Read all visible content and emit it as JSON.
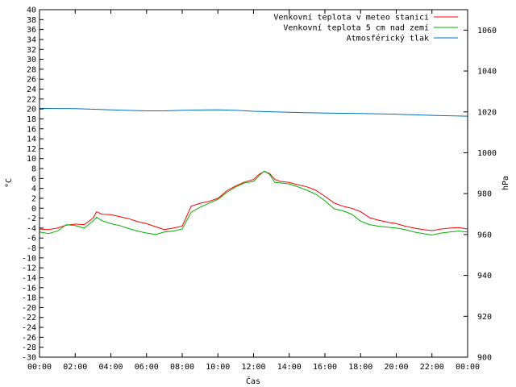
{
  "chart_data": {
    "type": "line",
    "title": "",
    "xlabel": "Čas",
    "ylabel_left": "°C",
    "ylabel_right": "hPa",
    "x_ticks": [
      "00:00",
      "02:00",
      "04:00",
      "06:00",
      "08:00",
      "10:00",
      "12:00",
      "14:00",
      "16:00",
      "18:00",
      "20:00",
      "22:00",
      "00:00"
    ],
    "x_range_hours": [
      0,
      24
    ],
    "y_left_range": [
      -30,
      40
    ],
    "y_left_ticks": [
      "-30",
      "-28",
      "-26",
      "-24",
      "-22",
      "-20",
      "-18",
      "-16",
      "-14",
      "-12",
      "-10",
      "-8",
      "-6",
      "-4",
      "-2",
      "0",
      "2",
      "4",
      "6",
      "8",
      "10",
      "12",
      "14",
      "16",
      "18",
      "20",
      "22",
      "24",
      "26",
      "28",
      "30",
      "32",
      "34",
      "36",
      "38",
      "40"
    ],
    "y_right_range": [
      900,
      1070
    ],
    "y_right_ticks": [
      "900",
      "920",
      "940",
      "960",
      "980",
      "1000",
      "1020",
      "1040",
      "1060"
    ],
    "grid": false,
    "legend_position": "top-right",
    "series": [
      {
        "name": "Venkovní teplota v meteo stanici",
        "color": "#ff0000",
        "axis": "left",
        "x": [
          0,
          0.5,
          1,
          1.5,
          2,
          2.5,
          3,
          3.2,
          3.5,
          4,
          4.5,
          5,
          5.5,
          6,
          6.5,
          7,
          7.5,
          8,
          8.5,
          9,
          9.5,
          10,
          10.5,
          11,
          11.5,
          12,
          12.3,
          12.6,
          12.9,
          13.2,
          13.5,
          14,
          14.5,
          15,
          15.5,
          16,
          16.5,
          17,
          17.5,
          18,
          18.5,
          19,
          19.5,
          20,
          20.5,
          21,
          21.5,
          22,
          22.5,
          23,
          23.5,
          24
        ],
        "values": [
          -4.2,
          -4.3,
          -4,
          -3.4,
          -3.2,
          -3.3,
          -2,
          -0.7,
          -1.2,
          -1.3,
          -1.7,
          -2.1,
          -2.7,
          -3.1,
          -3.7,
          -4.3,
          -4,
          -3.6,
          0.4,
          1,
          1.4,
          2,
          3.5,
          4.5,
          5.3,
          5.8,
          6.8,
          7.4,
          7,
          5.8,
          5.4,
          5.2,
          4.7,
          4.3,
          3.6,
          2.4,
          1.1,
          0.4,
          0,
          -0.7,
          -1.9,
          -2.4,
          -2.8,
          -3.1,
          -3.6,
          -4,
          -4.3,
          -4.5,
          -4.2,
          -4,
          -3.9,
          -4.2
        ]
      },
      {
        "name": "Venkovní teplota 5 cm nad zemí",
        "color": "#00b000",
        "axis": "left",
        "x": [
          0,
          0.5,
          1,
          1.5,
          2,
          2.5,
          3,
          3.2,
          3.5,
          4,
          4.5,
          5,
          5.5,
          6,
          6.5,
          7,
          7.5,
          8,
          8.5,
          9,
          9.5,
          10,
          10.5,
          11,
          11.5,
          12,
          12.3,
          12.6,
          12.9,
          13.2,
          13.5,
          14,
          14.5,
          15,
          15.5,
          16,
          16.5,
          17,
          17.5,
          18,
          18.5,
          19,
          19.5,
          20,
          20.5,
          21,
          21.5,
          22,
          22.5,
          23,
          23.5,
          24
        ],
        "values": [
          -4.8,
          -5.1,
          -4.6,
          -3.3,
          -3.5,
          -4,
          -2.6,
          -1.8,
          -2.5,
          -3.1,
          -3.5,
          -4.1,
          -4.6,
          -5,
          -5.3,
          -4.8,
          -4.6,
          -4.2,
          -0.8,
          0.2,
          1,
          1.8,
          3.2,
          4.3,
          5.1,
          5.4,
          6.5,
          7.5,
          6.8,
          5.2,
          5.1,
          4.9,
          4.3,
          3.6,
          2.8,
          1.5,
          -0.1,
          -0.5,
          -1.2,
          -2.6,
          -3.3,
          -3.6,
          -3.8,
          -4,
          -4.3,
          -4.8,
          -5.1,
          -5.4,
          -5,
          -4.8,
          -4.6,
          -4.8
        ]
      },
      {
        "name": "Atmosférický tlak",
        "color": "#0070c0",
        "axis": "right",
        "x": [
          0,
          2,
          4,
          6,
          7,
          8,
          10,
          11,
          12,
          14,
          16,
          18,
          20,
          22,
          24
        ],
        "values": [
          1021.7,
          1021.6,
          1021,
          1020.5,
          1020.5,
          1020.8,
          1021,
          1020.8,
          1020.3,
          1019.8,
          1019.4,
          1019.2,
          1018.9,
          1018.3,
          1017.9
        ]
      }
    ]
  }
}
